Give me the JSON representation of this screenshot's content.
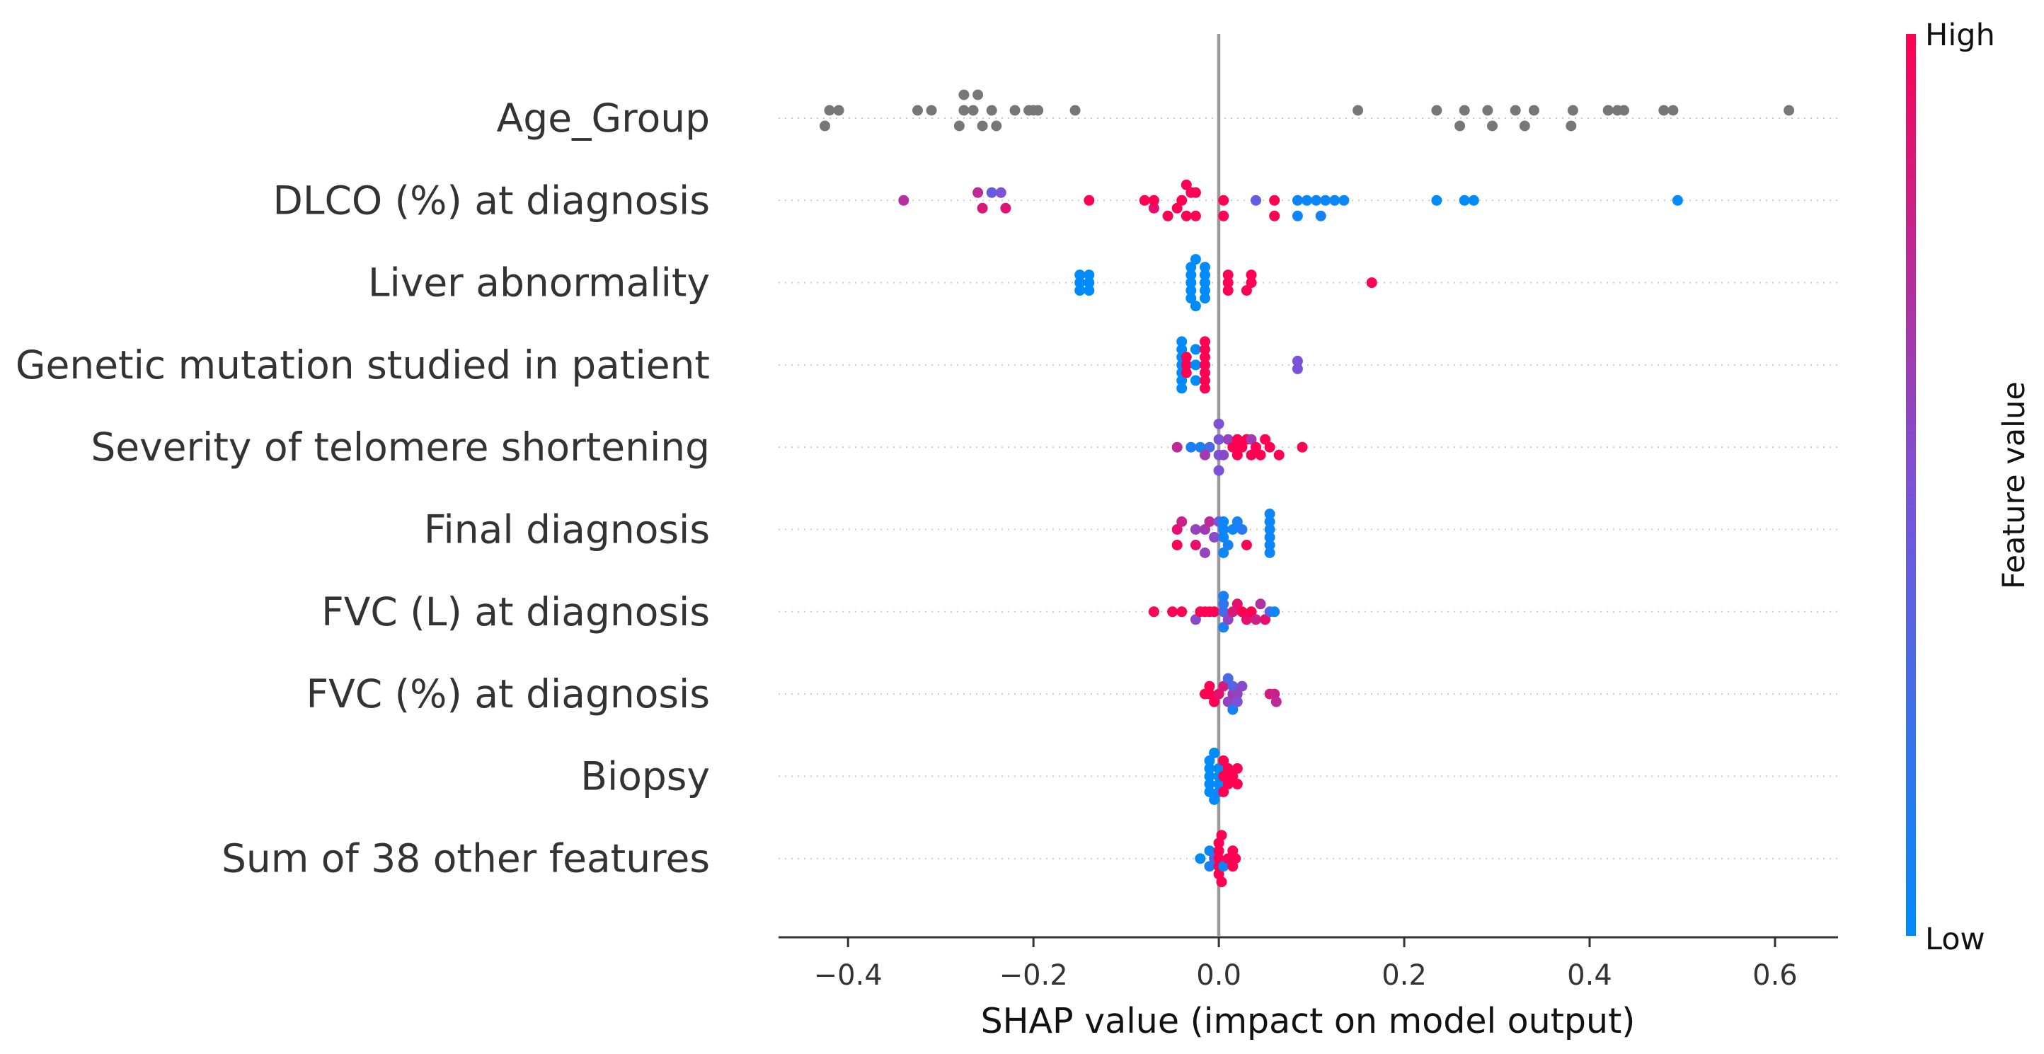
{
  "chart_data": {
    "type": "scatter",
    "xlabel": "SHAP value (impact on model output)",
    "xlim": [
      -0.475,
      0.668
    ],
    "xticks": [
      -0.4,
      -0.2,
      0.0,
      0.2,
      0.4,
      0.6
    ],
    "xtick_labels": [
      "−0.4",
      "−0.2",
      "0.0",
      "0.2",
      "0.4",
      "0.6"
    ],
    "colorbar": {
      "label": "Feature value",
      "high_label": "High",
      "low_label": "Low",
      "low_color": "#008bfb",
      "mid_color": "#7b52d8",
      "high_color": "#ff0052"
    },
    "missing_color": "#777777",
    "zero_line_color": "#999999",
    "features": [
      {
        "name": "Age_Group",
        "points": [
          [
            -0.425,
            1,
            0.5
          ],
          [
            -0.42,
            -1,
            0.5
          ],
          [
            -0.41,
            -1,
            0.5
          ],
          [
            -0.325,
            -1,
            0.5
          ],
          [
            -0.31,
            -1,
            0.5
          ],
          [
            -0.28,
            1,
            0.5
          ],
          [
            -0.275,
            -1,
            0.5
          ],
          [
            -0.275,
            -3,
            0.5
          ],
          [
            -0.265,
            -1,
            0.5
          ],
          [
            -0.26,
            -3,
            0.5
          ],
          [
            -0.255,
            1,
            0.5
          ],
          [
            -0.245,
            -1,
            0.5
          ],
          [
            -0.24,
            1,
            0.5
          ],
          [
            -0.22,
            -1,
            0.5
          ],
          [
            -0.205,
            -1,
            0.5
          ],
          [
            -0.2,
            -1,
            0.5
          ],
          [
            -0.195,
            -1,
            0.5
          ],
          [
            -0.155,
            -1,
            0.5
          ],
          [
            0.15,
            -1,
            0.5
          ],
          [
            0.235,
            -1,
            0.5
          ],
          [
            0.26,
            1,
            0.5
          ],
          [
            0.265,
            -1,
            0.5
          ],
          [
            0.29,
            -1,
            0.5
          ],
          [
            0.295,
            1,
            0.5
          ],
          [
            0.32,
            -1,
            0.5
          ],
          [
            0.33,
            1,
            0.5
          ],
          [
            0.34,
            -1,
            0.5
          ],
          [
            0.38,
            1,
            0.5
          ],
          [
            0.382,
            -1,
            0.5
          ],
          [
            0.42,
            -1,
            0.5
          ],
          [
            0.43,
            -1,
            0.5
          ],
          [
            0.437,
            -1,
            0.5
          ],
          [
            0.48,
            -1,
            0.5
          ],
          [
            0.49,
            -1,
            0.5
          ],
          [
            0.615,
            -1,
            0.5
          ]
        ]
      },
      {
        "name": "DLCO (%) at diagnosis",
        "points": [
          [
            -0.34,
            0,
            0.7
          ],
          [
            -0.255,
            1,
            0.85
          ],
          [
            -0.26,
            -1,
            0.75
          ],
          [
            -0.23,
            1,
            0.88
          ],
          [
            -0.245,
            -1,
            0.4
          ],
          [
            -0.235,
            -1,
            0.5
          ],
          [
            -0.14,
            0,
            1
          ],
          [
            -0.08,
            0,
            1
          ],
          [
            -0.07,
            1,
            0.9
          ],
          [
            -0.07,
            0,
            1
          ],
          [
            -0.055,
            2,
            1
          ],
          [
            -0.045,
            1,
            1
          ],
          [
            -0.04,
            0,
            1
          ],
          [
            -0.035,
            2,
            1
          ],
          [
            -0.03,
            -1,
            0.95
          ],
          [
            -0.025,
            2,
            1
          ],
          [
            -0.025,
            -1,
            1
          ],
          [
            -0.035,
            -2,
            1
          ],
          [
            0.005,
            2,
            1
          ],
          [
            0.005,
            0,
            1
          ],
          [
            0.04,
            0,
            0.4
          ],
          [
            0.06,
            2,
            1
          ],
          [
            0.06,
            0,
            1
          ],
          [
            0.085,
            2,
            0.05
          ],
          [
            0.085,
            0,
            0.05
          ],
          [
            0.095,
            0,
            0.05
          ],
          [
            0.105,
            0,
            0.05
          ],
          [
            0.11,
            2,
            0.1
          ],
          [
            0.115,
            0,
            0.05
          ],
          [
            0.125,
            0,
            0.05
          ],
          [
            0.135,
            0,
            0.05
          ],
          [
            0.235,
            0,
            0
          ],
          [
            0.265,
            0,
            0
          ],
          [
            0.275,
            0,
            0
          ],
          [
            0.495,
            0,
            0
          ]
        ]
      },
      {
        "name": "Liver abnormality",
        "points": [
          [
            -0.15,
            1,
            0
          ],
          [
            -0.14,
            1,
            0
          ],
          [
            -0.15,
            0,
            0
          ],
          [
            -0.14,
            0,
            0
          ],
          [
            -0.15,
            -1,
            0
          ],
          [
            -0.14,
            -1,
            0
          ],
          [
            -0.03,
            2,
            0
          ],
          [
            -0.03,
            1,
            0
          ],
          [
            -0.03,
            0,
            0
          ],
          [
            -0.03,
            -1,
            0
          ],
          [
            -0.03,
            -2,
            0
          ],
          [
            -0.025,
            3,
            0
          ],
          [
            -0.025,
            -3,
            0
          ],
          [
            -0.015,
            1,
            0
          ],
          [
            -0.015,
            0,
            0
          ],
          [
            -0.015,
            -1,
            0
          ],
          [
            -0.015,
            2,
            0
          ],
          [
            -0.015,
            -2,
            0
          ],
          [
            0.01,
            1,
            1
          ],
          [
            0.01,
            0,
            1
          ],
          [
            0.01,
            -1,
            1
          ],
          [
            0.03,
            1,
            1
          ],
          [
            0.035,
            0,
            1
          ],
          [
            0.035,
            -1,
            1
          ],
          [
            0.165,
            0,
            1
          ]
        ]
      },
      {
        "name": "Genetic mutation studied in patient",
        "points": [
          [
            -0.04,
            3,
            0
          ],
          [
            -0.04,
            2,
            0
          ],
          [
            -0.04,
            1,
            0
          ],
          [
            -0.04,
            0,
            0
          ],
          [
            -0.04,
            -1,
            0
          ],
          [
            -0.04,
            -2,
            0
          ],
          [
            -0.04,
            -3,
            0
          ],
          [
            -0.035,
            1,
            1
          ],
          [
            -0.035,
            0,
            1
          ],
          [
            -0.035,
            -1,
            1
          ],
          [
            -0.025,
            2,
            0
          ],
          [
            -0.025,
            0,
            0
          ],
          [
            -0.025,
            -2,
            0
          ],
          [
            -0.015,
            3,
            1
          ],
          [
            -0.015,
            2,
            1
          ],
          [
            -0.015,
            1,
            1
          ],
          [
            -0.015,
            0,
            1
          ],
          [
            -0.015,
            -1,
            1
          ],
          [
            -0.015,
            -2,
            1
          ],
          [
            -0.015,
            -3,
            1
          ],
          [
            0.085,
            0.5,
            0.5
          ],
          [
            0.085,
            -0.5,
            0.5
          ]
        ]
      },
      {
        "name": "Severity of telomere shortening",
        "points": [
          [
            -0.045,
            0,
            0.75
          ],
          [
            -0.03,
            0,
            0.1
          ],
          [
            -0.02,
            0,
            0.1
          ],
          [
            -0.01,
            0,
            0.3
          ],
          [
            -0.015,
            1,
            0.65
          ],
          [
            0.0,
            3,
            0.5
          ],
          [
            0.0,
            1,
            0.5
          ],
          [
            0.0,
            -1,
            0.5
          ],
          [
            0.0,
            -3,
            0.5
          ],
          [
            0.005,
            1,
            0.55
          ],
          [
            0.01,
            -1,
            0.6
          ],
          [
            0.015,
            0,
            1
          ],
          [
            0.02,
            -1,
            1
          ],
          [
            0.02,
            1,
            1
          ],
          [
            0.025,
            0,
            1
          ],
          [
            0.03,
            -1,
            1
          ],
          [
            0.035,
            1,
            1
          ],
          [
            0.035,
            -1,
            0.65
          ],
          [
            0.04,
            0,
            1
          ],
          [
            0.045,
            1,
            1
          ],
          [
            0.05,
            -1,
            1
          ],
          [
            0.055,
            0,
            1
          ],
          [
            0.065,
            1,
            1
          ],
          [
            0.09,
            0,
            1
          ]
        ]
      },
      {
        "name": "Final diagnosis",
        "points": [
          [
            -0.045,
            2,
            1
          ],
          [
            -0.045,
            0,
            0.9
          ],
          [
            -0.04,
            -1,
            0.8
          ],
          [
            -0.025,
            2,
            0.9
          ],
          [
            -0.025,
            0,
            0.6
          ],
          [
            -0.015,
            0,
            0.65
          ],
          [
            -0.015,
            3,
            0.6
          ],
          [
            -0.01,
            -1,
            0.75
          ],
          [
            -0.005,
            1,
            0.55
          ],
          [
            0.0,
            -1,
            0.45
          ],
          [
            0.005,
            3,
            0.05
          ],
          [
            0.005,
            1,
            0.05
          ],
          [
            0.005,
            0,
            0.05
          ],
          [
            0.005,
            -1,
            0.05
          ],
          [
            0.01,
            2,
            0.1
          ],
          [
            0.015,
            0,
            0.05
          ],
          [
            0.02,
            -1,
            0.1
          ],
          [
            0.025,
            0,
            0.15
          ],
          [
            0.03,
            2,
            1
          ],
          [
            0.055,
            3,
            0.05
          ],
          [
            0.055,
            2,
            0.05
          ],
          [
            0.055,
            1,
            0.05
          ],
          [
            0.055,
            0,
            0.05
          ],
          [
            0.055,
            -1,
            0.05
          ],
          [
            0.055,
            -2,
            0.05
          ]
        ]
      },
      {
        "name": "FVC (L) at diagnosis",
        "points": [
          [
            -0.07,
            0,
            1
          ],
          [
            -0.05,
            0,
            1
          ],
          [
            -0.04,
            0,
            1
          ],
          [
            -0.025,
            1,
            0.55
          ],
          [
            -0.02,
            0,
            1
          ],
          [
            -0.015,
            0,
            1
          ],
          [
            -0.01,
            0,
            1
          ],
          [
            -0.005,
            0,
            1
          ],
          [
            0.005,
            2,
            0.1
          ],
          [
            0.005,
            0,
            0.3
          ],
          [
            0.005,
            -1,
            0.2
          ],
          [
            0.005,
            -2,
            0.1
          ],
          [
            0.01,
            1,
            0.6
          ],
          [
            0.015,
            0,
            0.85
          ],
          [
            0.02,
            -1,
            0.9
          ],
          [
            0.025,
            0,
            1
          ],
          [
            0.03,
            1,
            0.9
          ],
          [
            0.035,
            0,
            1
          ],
          [
            0.04,
            1,
            0.8
          ],
          [
            0.045,
            -1,
            0.7
          ],
          [
            0.05,
            1,
            0.9
          ],
          [
            0.055,
            0,
            0.35
          ],
          [
            0.06,
            0,
            0.05
          ]
        ]
      },
      {
        "name": "FVC (%) at diagnosis",
        "points": [
          [
            -0.015,
            0,
            1
          ],
          [
            -0.01,
            0,
            1
          ],
          [
            -0.01,
            -1,
            1
          ],
          [
            -0.005,
            1,
            1
          ],
          [
            0.0,
            0,
            0.9
          ],
          [
            0.005,
            -1,
            0.85
          ],
          [
            0.01,
            -2,
            0.3
          ],
          [
            0.01,
            1,
            0.6
          ],
          [
            0.015,
            0,
            0.65
          ],
          [
            0.015,
            2,
            0.1
          ],
          [
            0.015,
            -1,
            0.35
          ],
          [
            0.02,
            0,
            0.6
          ],
          [
            0.02,
            1,
            0.5
          ],
          [
            0.025,
            -1,
            0.55
          ],
          [
            0.055,
            0,
            0.85
          ],
          [
            0.06,
            0,
            0.8
          ],
          [
            0.062,
            1,
            0.75
          ]
        ]
      },
      {
        "name": "Biopsy",
        "points": [
          [
            -0.01,
            2,
            0
          ],
          [
            -0.01,
            1,
            0
          ],
          [
            -0.01,
            0,
            0
          ],
          [
            -0.01,
            -1,
            0
          ],
          [
            -0.01,
            -2,
            0
          ],
          [
            -0.005,
            3,
            0
          ],
          [
            -0.005,
            -3,
            0
          ],
          [
            0.0,
            1,
            0
          ],
          [
            0.0,
            0,
            0
          ],
          [
            0.0,
            -1,
            0
          ],
          [
            0.0,
            2,
            0.05
          ],
          [
            0.005,
            2,
            1
          ],
          [
            0.005,
            0,
            1
          ],
          [
            0.005,
            -2,
            1
          ],
          [
            0.01,
            1,
            1
          ],
          [
            0.01,
            -1,
            1
          ],
          [
            0.015,
            0,
            1
          ],
          [
            0.02,
            1,
            1
          ],
          [
            0.02,
            -1,
            1
          ]
        ]
      },
      {
        "name": "Sum of 38 other features",
        "points": [
          [
            -0.02,
            0,
            0
          ],
          [
            -0.01,
            1,
            0.1
          ],
          [
            -0.01,
            -1,
            0.05
          ],
          [
            -0.005,
            0,
            0.3
          ],
          [
            0.0,
            2,
            1
          ],
          [
            0.0,
            1,
            1
          ],
          [
            0.0,
            0,
            1
          ],
          [
            0.0,
            -1,
            1
          ],
          [
            0.0,
            -2,
            1
          ],
          [
            0.003,
            3,
            1
          ],
          [
            0.003,
            -3,
            1
          ],
          [
            0.005,
            1,
            0.05
          ],
          [
            0.01,
            0,
            1
          ],
          [
            0.015,
            1,
            1
          ],
          [
            0.015,
            -1,
            1
          ],
          [
            0.018,
            0,
            1
          ]
        ]
      }
    ]
  }
}
